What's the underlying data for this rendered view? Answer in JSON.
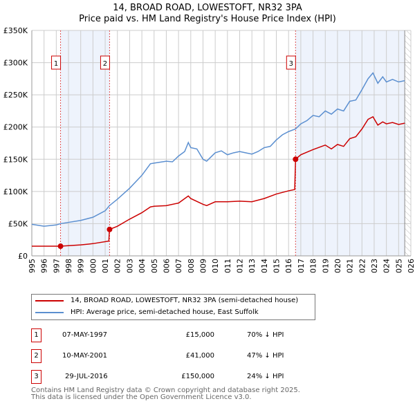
{
  "chart_data": {
    "type": "line",
    "title": "14, BROAD ROAD, LOWESTOFT, NR32 3PA",
    "subtitle": "Price paid vs. HM Land Registry's House Price Index (HPI)",
    "xlim": [
      1995,
      2026
    ],
    "ylim": [
      0,
      350000
    ],
    "yticks": [
      {
        "v": 0,
        "label": "£0"
      },
      {
        "v": 50000,
        "label": "£50K"
      },
      {
        "v": 100000,
        "label": "£100K"
      },
      {
        "v": 150000,
        "label": "£150K"
      },
      {
        "v": 200000,
        "label": "£200K"
      },
      {
        "v": 250000,
        "label": "£250K"
      },
      {
        "v": 300000,
        "label": "£300K"
      },
      {
        "v": 350000,
        "label": "£350K"
      }
    ],
    "xticks": [
      "1995",
      "1996",
      "1997",
      "1998",
      "1999",
      "2000",
      "2001",
      "2002",
      "2003",
      "2004",
      "2005",
      "2006",
      "2007",
      "2008",
      "2009",
      "2010",
      "2011",
      "2012",
      "2013",
      "2014",
      "2015",
      "2016",
      "2017",
      "2018",
      "2019",
      "2020",
      "2021",
      "2022",
      "2023",
      "2024",
      "2025",
      "2026"
    ],
    "grid": true,
    "series": [
      {
        "name": "14, BROAD ROAD, LOWESTOFT, NR32 3PA (semi-detached house)",
        "color": "#cc0000",
        "points": [
          [
            1995,
            15000
          ],
          [
            1997,
            15000
          ],
          [
            1997.35,
            15000
          ],
          [
            1999,
            17000
          ],
          [
            2000,
            19000
          ],
          [
            2001.3,
            23000
          ],
          [
            2001.35,
            41000
          ],
          [
            2002,
            46000
          ],
          [
            2003,
            57000
          ],
          [
            2004,
            67000
          ],
          [
            2004.7,
            76000
          ],
          [
            2005,
            77000
          ],
          [
            2006,
            78000
          ],
          [
            2007,
            82000
          ],
          [
            2007.8,
            93000
          ],
          [
            2008,
            89000
          ],
          [
            2009,
            80000
          ],
          [
            2009.3,
            78000
          ],
          [
            2010,
            84000
          ],
          [
            2011,
            84000
          ],
          [
            2012,
            85000
          ],
          [
            2013,
            84000
          ],
          [
            2014,
            89000
          ],
          [
            2015,
            96000
          ],
          [
            2016,
            101000
          ],
          [
            2016.5,
            103000
          ],
          [
            2016.57,
            150000
          ],
          [
            2017,
            157000
          ],
          [
            2018,
            165000
          ],
          [
            2019,
            172000
          ],
          [
            2019.5,
            166000
          ],
          [
            2020,
            173000
          ],
          [
            2020.5,
            170000
          ],
          [
            2021,
            182000
          ],
          [
            2021.5,
            185000
          ],
          [
            2022,
            197000
          ],
          [
            2022.5,
            212000
          ],
          [
            2022.9,
            216000
          ],
          [
            2023.3,
            203000
          ],
          [
            2023.7,
            208000
          ],
          [
            2024,
            205000
          ],
          [
            2024.5,
            207000
          ],
          [
            2025,
            204000
          ],
          [
            2025.5,
            206000
          ]
        ]
      },
      {
        "name": "HPI: Average price, semi-detached house, East Suffolk",
        "color": "#5b8fd0",
        "points": [
          [
            1995,
            49000
          ],
          [
            1996,
            46000
          ],
          [
            1997,
            48000
          ],
          [
            1997.35,
            50000
          ],
          [
            1998,
            52000
          ],
          [
            1999,
            55000
          ],
          [
            2000,
            60000
          ],
          [
            2001,
            70000
          ],
          [
            2001.35,
            78000
          ],
          [
            2002,
            88000
          ],
          [
            2003,
            105000
          ],
          [
            2004,
            125000
          ],
          [
            2004.7,
            143000
          ],
          [
            2005,
            144000
          ],
          [
            2006,
            147000
          ],
          [
            2006.5,
            146000
          ],
          [
            2007,
            155000
          ],
          [
            2007.5,
            162000
          ],
          [
            2007.8,
            176000
          ],
          [
            2008,
            168000
          ],
          [
            2008.5,
            166000
          ],
          [
            2009,
            150000
          ],
          [
            2009.3,
            147000
          ],
          [
            2010,
            160000
          ],
          [
            2010.5,
            163000
          ],
          [
            2011,
            157000
          ],
          [
            2011.5,
            160000
          ],
          [
            2012,
            162000
          ],
          [
            2012.5,
            160000
          ],
          [
            2013,
            158000
          ],
          [
            2013.5,
            162000
          ],
          [
            2014,
            168000
          ],
          [
            2014.5,
            170000
          ],
          [
            2015,
            180000
          ],
          [
            2015.5,
            188000
          ],
          [
            2016,
            193000
          ],
          [
            2016.57,
            197000
          ],
          [
            2017,
            205000
          ],
          [
            2017.5,
            210000
          ],
          [
            2018,
            218000
          ],
          [
            2018.5,
            216000
          ],
          [
            2019,
            225000
          ],
          [
            2019.5,
            220000
          ],
          [
            2020,
            228000
          ],
          [
            2020.5,
            225000
          ],
          [
            2021,
            240000
          ],
          [
            2021.5,
            242000
          ],
          [
            2022,
            258000
          ],
          [
            2022.5,
            275000
          ],
          [
            2022.9,
            284000
          ],
          [
            2023.3,
            268000
          ],
          [
            2023.7,
            278000
          ],
          [
            2024,
            270000
          ],
          [
            2024.5,
            274000
          ],
          [
            2025,
            270000
          ],
          [
            2025.5,
            272000
          ]
        ]
      }
    ],
    "sales": [
      {
        "label": "1",
        "x": 1997.35,
        "y": 15000
      },
      {
        "label": "2",
        "x": 2001.36,
        "y": 41000
      },
      {
        "label": "3",
        "x": 2016.57,
        "y": 150000
      }
    ],
    "shaded_ranges": [
      [
        1997.35,
        2001.36
      ],
      [
        2016.57,
        2025.5
      ]
    ],
    "forecast_hatch_from": 2025.5,
    "legend_placement": "below"
  },
  "legend": {
    "red": "14, BROAD ROAD, LOWESTOFT, NR32 3PA (semi-detached house)",
    "blue": "HPI: Average price, semi-detached house, East Suffolk"
  },
  "table": [
    {
      "num": "1",
      "date": "07-MAY-1997",
      "price": "£15,000",
      "hpi": "70% ↓ HPI"
    },
    {
      "num": "2",
      "date": "10-MAY-2001",
      "price": "£41,000",
      "hpi": "47% ↓ HPI"
    },
    {
      "num": "3",
      "date": "29-JUL-2016",
      "price": "£150,000",
      "hpi": "24% ↓ HPI"
    }
  ],
  "footer": {
    "line1": "Contains HM Land Registry data © Crown copyright and database right 2025.",
    "line2": "This data is licensed under the Open Government Licence v3.0."
  }
}
